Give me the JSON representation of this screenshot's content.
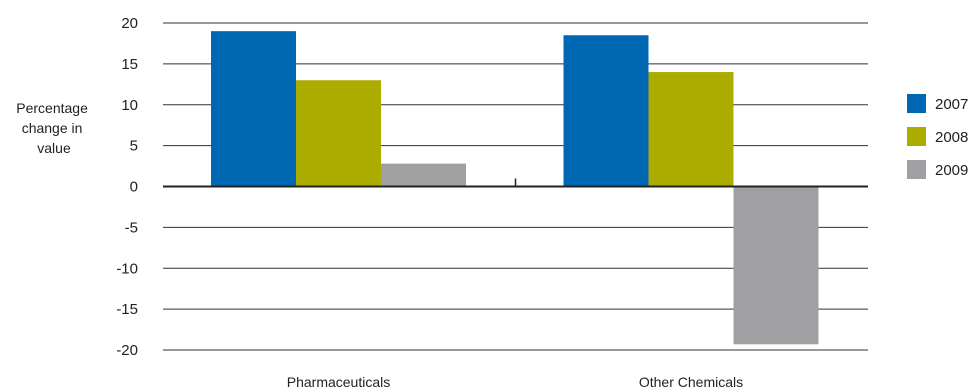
{
  "chart_data": {
    "type": "bar",
    "title": "",
    "xlabel": "",
    "ylabel": "Percentage change in value",
    "ylabel_lines": [
      "Percentage",
      "change in",
      "value"
    ],
    "ylim": [
      -20,
      20
    ],
    "yticks": [
      20,
      15,
      10,
      5,
      0,
      -5,
      -10,
      -15,
      -20
    ],
    "categories": [
      "Pharmaceuticals",
      "Other Chemicals"
    ],
    "series": [
      {
        "name": "2007",
        "color": "#0068b3",
        "values": [
          19,
          18.5
        ]
      },
      {
        "name": "2008",
        "color": "#acab00",
        "values": [
          13,
          14
        ]
      },
      {
        "name": "2009",
        "color": "#a0a0a2",
        "values": [
          2.8,
          -19.3
        ]
      }
    ],
    "grid": true,
    "legend_position": "right"
  }
}
